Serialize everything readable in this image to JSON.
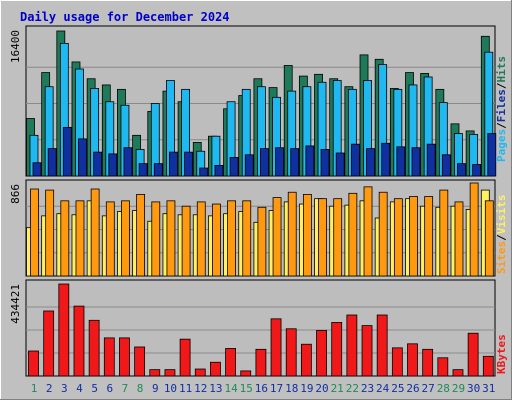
{
  "title": "Daily usage for December 2024",
  "colors": {
    "background": "#c0c0c0",
    "panel": "#bdbdbd",
    "title": "#0000cc",
    "hits": "#1f7a5a",
    "files": "#20b8f0",
    "pages": "#1030a0",
    "visits": "#fff060",
    "sites": "#ff9a10",
    "kbytes": "#f01818",
    "weekend_label": "#1f8a5a",
    "weekday_label": "#1030a0"
  },
  "chart_data": [
    {
      "type": "bar",
      "name": "hits-files-pages",
      "categories": [
        "1",
        "2",
        "3",
        "4",
        "5",
        "6",
        "7",
        "8",
        "9",
        "10",
        "11",
        "12",
        "13",
        "14",
        "15",
        "16",
        "17",
        "18",
        "19",
        "20",
        "21",
        "22",
        "23",
        "24",
        "25",
        "26",
        "27",
        "28",
        "29",
        "30",
        "31"
      ],
      "weekend_days": [
        "1",
        "7",
        "8",
        "14",
        "15",
        "21",
        "22",
        "28",
        "29"
      ],
      "ymax_label": "16400",
      "ylim": [
        0,
        16400
      ],
      "legend": [
        "Pages",
        "Files",
        "Hits"
      ],
      "legend_separator": "/",
      "series": [
        {
          "name": "Hits",
          "values": [
            6500,
            11700,
            16400,
            12900,
            11000,
            10300,
            9800,
            4600,
            7300,
            9600,
            8400,
            3800,
            4500,
            7600,
            9100,
            11000,
            10000,
            12500,
            11300,
            11500,
            11000,
            10100,
            13700,
            13200,
            9900,
            11700,
            11600,
            9800,
            5900,
            5100,
            15800
          ]
        },
        {
          "name": "Files",
          "values": [
            4600,
            10100,
            15000,
            12100,
            9900,
            8400,
            8000,
            3000,
            8200,
            10800,
            9800,
            2800,
            4500,
            8400,
            9800,
            10100,
            8900,
            9600,
            10100,
            10600,
            10800,
            9800,
            10800,
            12600,
            9800,
            10300,
            11200,
            8300,
            4800,
            4700,
            14000
          ]
        },
        {
          "name": "Pages",
          "values": [
            1500,
            3100,
            5500,
            4200,
            2700,
            2500,
            3200,
            1400,
            1400,
            2700,
            2700,
            900,
            1200,
            2100,
            2400,
            3100,
            3200,
            3100,
            3400,
            3000,
            2600,
            3600,
            3100,
            3700,
            3300,
            3200,
            3600,
            2400,
            1400,
            1300,
            4800
          ]
        }
      ]
    },
    {
      "type": "bar",
      "name": "visits-sites",
      "categories": [
        "1",
        "2",
        "3",
        "4",
        "5",
        "6",
        "7",
        "8",
        "9",
        "10",
        "11",
        "12",
        "13",
        "14",
        "15",
        "16",
        "17",
        "18",
        "19",
        "20",
        "21",
        "22",
        "23",
        "24",
        "25",
        "26",
        "27",
        "28",
        "29",
        "30",
        "31"
      ],
      "ymax_label": "866",
      "ylim": [
        0,
        866
      ],
      "legend": [
        "Sites",
        "Visits"
      ],
      "legend_separator": "/",
      "series": [
        {
          "name": "Visits",
          "values": [
            450,
            560,
            580,
            570,
            700,
            560,
            600,
            610,
            510,
            580,
            570,
            570,
            560,
            580,
            600,
            500,
            610,
            690,
            670,
            720,
            650,
            660,
            700,
            540,
            690,
            720,
            650,
            640,
            650,
            620,
            800
          ]
        },
        {
          "name": "Sites",
          "values": [
            810,
            800,
            700,
            700,
            810,
            690,
            700,
            760,
            690,
            700,
            650,
            690,
            670,
            700,
            700,
            640,
            730,
            780,
            760,
            720,
            720,
            770,
            830,
            780,
            720,
            740,
            740,
            800,
            690,
            866,
            700
          ]
        }
      ]
    },
    {
      "type": "bar",
      "name": "kbytes",
      "categories": [
        "1",
        "2",
        "3",
        "4",
        "5",
        "6",
        "7",
        "8",
        "9",
        "10",
        "11",
        "12",
        "13",
        "14",
        "15",
        "16",
        "17",
        "18",
        "19",
        "20",
        "21",
        "22",
        "23",
        "24",
        "25",
        "26",
        "27",
        "28",
        "29",
        "30",
        "31"
      ],
      "ymax_label": "434421",
      "ylim": [
        0,
        434421
      ],
      "legend": [
        "KBytes"
      ],
      "series": [
        {
          "name": "KBytes",
          "values": [
            118000,
            307000,
            434421,
            330000,
            263000,
            180000,
            180000,
            137000,
            30000,
            30000,
            174000,
            33000,
            65000,
            130000,
            24000,
            126000,
            270000,
            223000,
            150000,
            215000,
            253000,
            288000,
            238000,
            288000,
            133000,
            152000,
            126000,
            86000,
            30000,
            202000,
            93000
          ]
        }
      ]
    }
  ]
}
